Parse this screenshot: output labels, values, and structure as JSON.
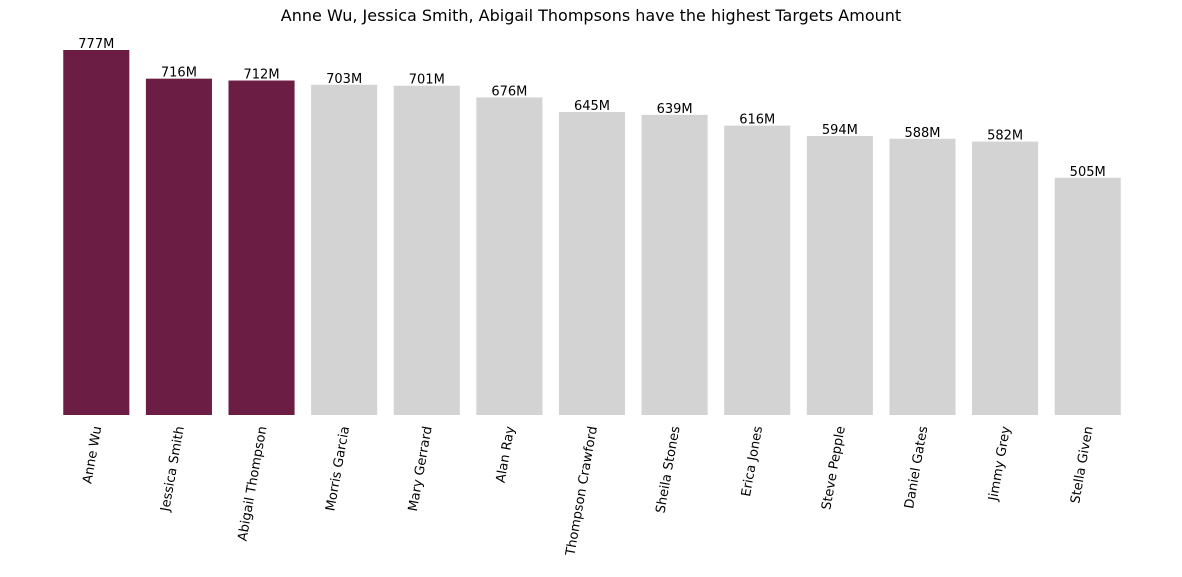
{
  "chart_data": {
    "type": "bar",
    "title": "Anne Wu, Jessica Smith, Abigail Thompsons have the highest Targets Amount",
    "xlabel": "",
    "ylabel": "",
    "categories": [
      "Anne Wu",
      "Jessica Smith",
      "Abigail Thompson",
      "Morris Garcia",
      "Mary Gerrard",
      "Alan Ray",
      "Thompson Crawford",
      "Sheila Stones",
      "Erica Jones",
      "Steve Pepple",
      "Daniel Gates",
      "Jimmy Grey",
      "Stella Given"
    ],
    "values": [
      777,
      716,
      712,
      703,
      701,
      676,
      645,
      639,
      616,
      594,
      588,
      582,
      505
    ],
    "value_labels": [
      "777M",
      "716M",
      "712M",
      "703M",
      "701M",
      "676M",
      "645M",
      "639M",
      "616M",
      "594M",
      "588M",
      "582M",
      "505M"
    ],
    "unit": "M",
    "highlighted": [
      "Anne Wu",
      "Jessica Smith",
      "Abigail Thompson"
    ],
    "ylim": [
      0,
      777
    ],
    "grid": false,
    "y_axis_visible": false,
    "tick_rotation_deg": -80,
    "colors": {
      "highlight": "#6b1d43",
      "default": "#d3d3d3",
      "text": "#000000"
    }
  }
}
